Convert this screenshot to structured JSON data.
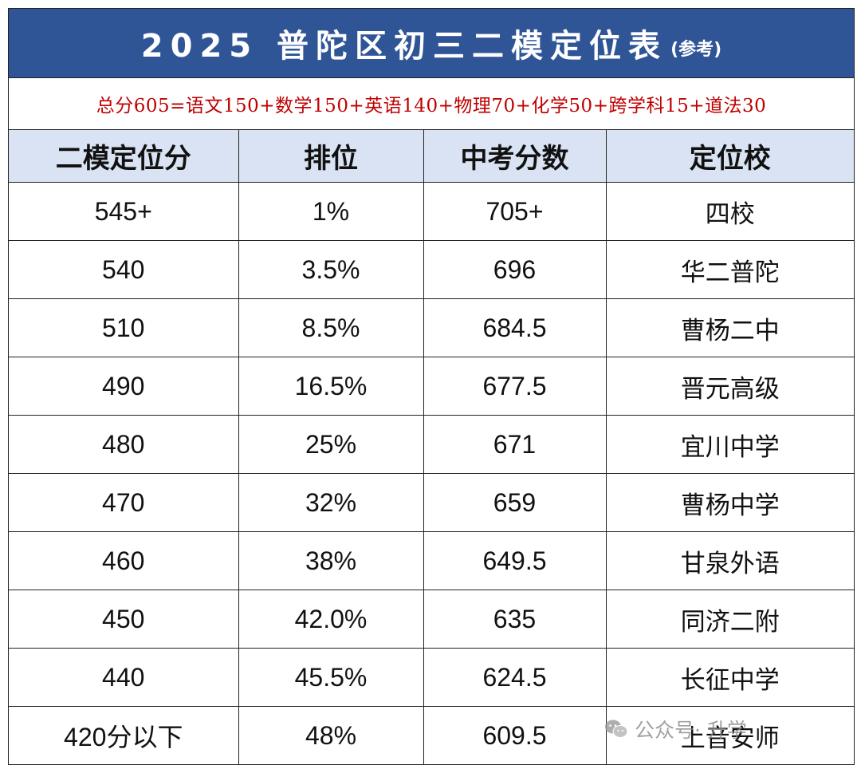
{
  "title": {
    "main": "2025 普陀区初三二模定位表",
    "note": "(参考)"
  },
  "formula": "总分605=语文150+数学150+英语140+物理70+化学50+跨学科15+道法30",
  "headers": [
    "二模定位分",
    "排位",
    "中考分数",
    "定位校"
  ],
  "rows": [
    {
      "score": "545+",
      "rank": "1%",
      "zhongkao": "705+",
      "school": "四校"
    },
    {
      "score": "540",
      "rank": "3.5%",
      "zhongkao": "696",
      "school": "华二普陀"
    },
    {
      "score": "510",
      "rank": "8.5%",
      "zhongkao": "684.5",
      "school": "曹杨二中"
    },
    {
      "score": "490",
      "rank": "16.5%",
      "zhongkao": "677.5",
      "school": "晋元高级"
    },
    {
      "score": "480",
      "rank": "25%",
      "zhongkao": "671",
      "school": "宜川中学"
    },
    {
      "score": "470",
      "rank": "32%",
      "zhongkao": "659",
      "school": "曹杨中学"
    },
    {
      "score": "460",
      "rank": "38%",
      "zhongkao": "649.5",
      "school": "甘泉外语"
    },
    {
      "score": "450",
      "rank": "42.0%",
      "zhongkao": "635",
      "school": "同济二附"
    },
    {
      "score": "440",
      "rank": "45.5%",
      "zhongkao": "624.5",
      "school": "长征中学"
    },
    {
      "score": "420分以下",
      "rank": "48%",
      "zhongkao": "609.5",
      "school": "上音安师"
    }
  ],
  "watermark": {
    "icon": "wechat-icon",
    "text": "公众号·     升学"
  },
  "colors": {
    "title_bg": "#2f5597",
    "header_bg": "#dae3f3",
    "formula_text": "#c00000"
  }
}
